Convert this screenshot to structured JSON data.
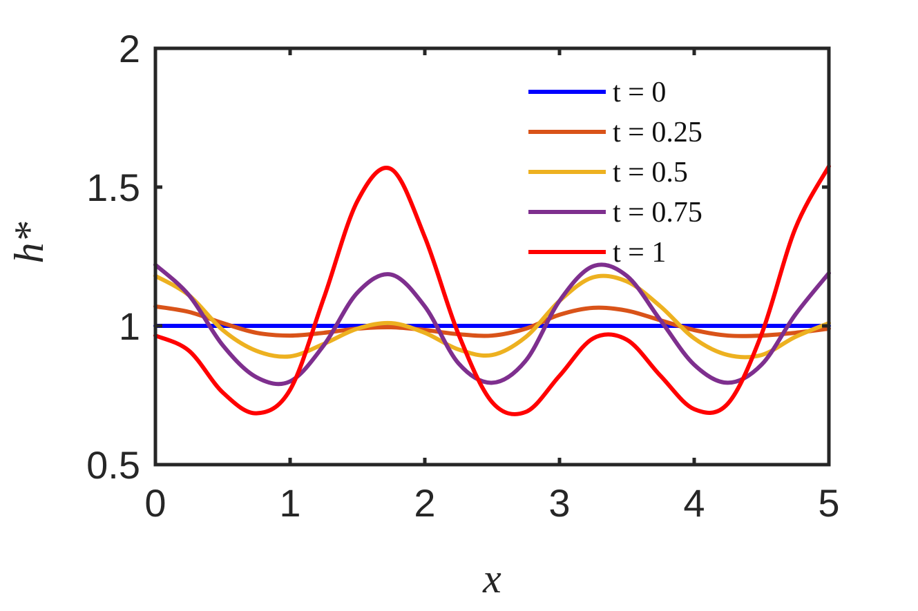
{
  "chart_data": {
    "type": "line",
    "xlabel": "x",
    "ylabel": "h*",
    "xlim": [
      0,
      5
    ],
    "ylim": [
      0.5,
      2
    ],
    "xticks": [
      0,
      1,
      2,
      3,
      4,
      5
    ],
    "yticks": [
      0.5,
      1,
      1.5,
      2
    ],
    "xtick_labels": [
      "0",
      "1",
      "2",
      "3",
      "4",
      "5"
    ],
    "ytick_labels": [
      "0.5",
      "1",
      "1.5",
      "2"
    ],
    "grid": false,
    "legend_position": "top-right",
    "x": [
      0,
      0.25,
      0.5,
      0.75,
      1,
      1.25,
      1.5,
      1.75,
      2,
      2.25,
      2.5,
      2.75,
      3,
      3.25,
      3.5,
      3.75,
      4,
      4.25,
      4.5,
      4.75,
      5
    ],
    "series": [
      {
        "name": "t = 0",
        "color": "#0000ff",
        "values": [
          1.0,
          1.0,
          1.0,
          1.0,
          1.0,
          1.0,
          1.0,
          1.0,
          1.0,
          1.0,
          1.0,
          1.0,
          1.0,
          1.0,
          1.0,
          1.0,
          1.0,
          1.0,
          1.0,
          1.0,
          1.0
        ]
      },
      {
        "name": "t = 0.25",
        "color": "#d95319",
        "values": [
          1.07,
          1.05,
          1.01,
          0.975,
          0.965,
          0.975,
          0.99,
          0.995,
          0.985,
          0.97,
          0.965,
          0.99,
          1.04,
          1.065,
          1.055,
          1.02,
          0.985,
          0.965,
          0.965,
          0.975,
          0.99
        ]
      },
      {
        "name": "t = 0.5",
        "color": "#edb120",
        "values": [
          1.18,
          1.11,
          0.985,
          0.91,
          0.89,
          0.935,
          0.99,
          1.01,
          0.975,
          0.915,
          0.895,
          0.96,
          1.09,
          1.175,
          1.16,
          1.07,
          0.955,
          0.895,
          0.895,
          0.96,
          1.01
        ]
      },
      {
        "name": "t = 0.75",
        "color": "#7e2f8e",
        "values": [
          1.22,
          1.11,
          0.93,
          0.815,
          0.8,
          0.93,
          1.12,
          1.185,
          1.07,
          0.865,
          0.795,
          0.875,
          1.09,
          1.215,
          1.18,
          1.02,
          0.86,
          0.795,
          0.86,
          1.04,
          1.19
        ]
      },
      {
        "name": "t = 1",
        "color": "#ff0000",
        "values": [
          0.965,
          0.91,
          0.76,
          0.685,
          0.77,
          1.1,
          1.45,
          1.565,
          1.32,
          0.97,
          0.725,
          0.69,
          0.82,
          0.955,
          0.95,
          0.82,
          0.7,
          0.72,
          0.97,
          1.35,
          1.575
        ]
      }
    ]
  }
}
